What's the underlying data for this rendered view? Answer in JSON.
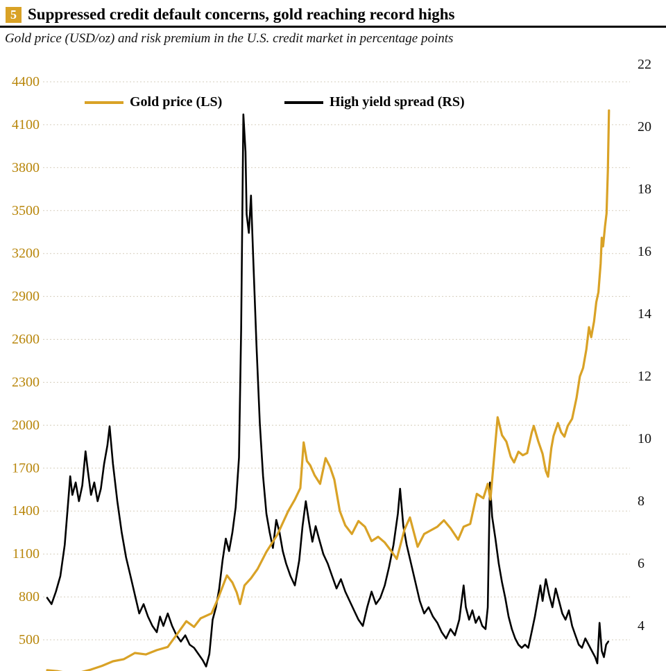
{
  "header": {
    "figure_number": "5",
    "title": "Suppressed credit default concerns, gold reaching record highs",
    "subtitle": "Gold price (USD/oz) and risk premium in the U.S. credit market in percentage points"
  },
  "colors": {
    "accent_gold": "#D9A226",
    "left_axis_text": "#B8860B",
    "right_axis_text": "#111111",
    "gridline": "#d5cdbc",
    "title_rule": "#000000"
  },
  "chart_data": {
    "type": "line",
    "title": "Suppressed credit default concerns, gold reaching record highs",
    "subtitle": "Gold price (USD/oz) and risk premium in the U.S. credit market in percentage points",
    "grid": "horizontal-dotted",
    "legend_position": "top-inside",
    "x_range": [
      2000,
      2025.7
    ],
    "x_unit": "year",
    "left_axis": {
      "ticks": [
        4400,
        4100,
        3800,
        3500,
        3200,
        2900,
        2600,
        2300,
        2000,
        1700,
        1400,
        1100,
        800,
        500
      ],
      "range": [
        280,
        4400
      ]
    },
    "right_axis": {
      "ticks": [
        22,
        20,
        18,
        16,
        14,
        12,
        10,
        8,
        6,
        4
      ],
      "range": [
        2.5,
        22
      ]
    },
    "legend": [
      {
        "label": "Gold price (LS)",
        "color": "#D9A226"
      },
      {
        "label": "High yield spread (RS)",
        "color": "#000000"
      }
    ],
    "series": [
      {
        "name": "Gold price (LS)",
        "axis": "left",
        "color": "#D9A226",
        "points": [
          [
            2000.0,
            288
          ],
          [
            2000.5,
            280
          ],
          [
            2001.0,
            266
          ],
          [
            2001.5,
            272
          ],
          [
            2002.0,
            292
          ],
          [
            2002.5,
            318
          ],
          [
            2003.0,
            350
          ],
          [
            2003.5,
            365
          ],
          [
            2004.0,
            408
          ],
          [
            2004.5,
            398
          ],
          [
            2005.0,
            428
          ],
          [
            2005.5,
            450
          ],
          [
            2006.0,
            555
          ],
          [
            2006.35,
            630
          ],
          [
            2006.7,
            590
          ],
          [
            2007.0,
            650
          ],
          [
            2007.5,
            685
          ],
          [
            2007.8,
            790
          ],
          [
            2008.2,
            950
          ],
          [
            2008.45,
            900
          ],
          [
            2008.65,
            830
          ],
          [
            2008.8,
            750
          ],
          [
            2009.0,
            880
          ],
          [
            2009.3,
            930
          ],
          [
            2009.6,
            995
          ],
          [
            2010.0,
            1115
          ],
          [
            2010.5,
            1235
          ],
          [
            2011.0,
            1400
          ],
          [
            2011.3,
            1480
          ],
          [
            2011.55,
            1560
          ],
          [
            2011.7,
            1880
          ],
          [
            2011.85,
            1750
          ],
          [
            2012.0,
            1720
          ],
          [
            2012.2,
            1650
          ],
          [
            2012.45,
            1590
          ],
          [
            2012.7,
            1770
          ],
          [
            2012.9,
            1710
          ],
          [
            2013.1,
            1620
          ],
          [
            2013.35,
            1400
          ],
          [
            2013.6,
            1300
          ],
          [
            2013.9,
            1240
          ],
          [
            2014.2,
            1330
          ],
          [
            2014.5,
            1290
          ],
          [
            2014.8,
            1190
          ],
          [
            2015.1,
            1220
          ],
          [
            2015.4,
            1180
          ],
          [
            2015.7,
            1120
          ],
          [
            2015.95,
            1065
          ],
          [
            2016.3,
            1270
          ],
          [
            2016.55,
            1355
          ],
          [
            2016.9,
            1150
          ],
          [
            2017.2,
            1240
          ],
          [
            2017.5,
            1265
          ],
          [
            2017.8,
            1290
          ],
          [
            2018.1,
            1335
          ],
          [
            2018.4,
            1280
          ],
          [
            2018.75,
            1200
          ],
          [
            2019.0,
            1290
          ],
          [
            2019.3,
            1310
          ],
          [
            2019.6,
            1520
          ],
          [
            2019.9,
            1490
          ],
          [
            2020.1,
            1590
          ],
          [
            2020.22,
            1480
          ],
          [
            2020.55,
            2055
          ],
          [
            2020.75,
            1930
          ],
          [
            2020.95,
            1885
          ],
          [
            2021.15,
            1780
          ],
          [
            2021.3,
            1740
          ],
          [
            2021.5,
            1815
          ],
          [
            2021.7,
            1790
          ],
          [
            2021.9,
            1805
          ],
          [
            2022.1,
            1945
          ],
          [
            2022.2,
            1995
          ],
          [
            2022.4,
            1890
          ],
          [
            2022.6,
            1800
          ],
          [
            2022.75,
            1680
          ],
          [
            2022.85,
            1640
          ],
          [
            2023.0,
            1840
          ],
          [
            2023.1,
            1925
          ],
          [
            2023.3,
            2015
          ],
          [
            2023.45,
            1950
          ],
          [
            2023.6,
            1920
          ],
          [
            2023.75,
            1995
          ],
          [
            2023.95,
            2045
          ],
          [
            2024.15,
            2190
          ],
          [
            2024.3,
            2340
          ],
          [
            2024.45,
            2400
          ],
          [
            2024.6,
            2530
          ],
          [
            2024.72,
            2685
          ],
          [
            2024.82,
            2615
          ],
          [
            2024.95,
            2725
          ],
          [
            2025.05,
            2860
          ],
          [
            2025.15,
            2930
          ],
          [
            2025.25,
            3130
          ],
          [
            2025.3,
            3310
          ],
          [
            2025.36,
            3250
          ],
          [
            2025.45,
            3390
          ],
          [
            2025.52,
            3480
          ],
          [
            2025.58,
            3780
          ],
          [
            2025.63,
            4200
          ]
        ]
      },
      {
        "name": "High yield spread (RS)",
        "axis": "right",
        "color": "#000000",
        "points": [
          [
            2000.0,
            4.9
          ],
          [
            2000.2,
            4.7
          ],
          [
            2000.4,
            5.1
          ],
          [
            2000.6,
            5.6
          ],
          [
            2000.8,
            6.6
          ],
          [
            2000.95,
            7.9
          ],
          [
            2001.05,
            8.8
          ],
          [
            2001.15,
            8.2
          ],
          [
            2001.3,
            8.6
          ],
          [
            2001.45,
            8.0
          ],
          [
            2001.6,
            8.5
          ],
          [
            2001.75,
            9.6
          ],
          [
            2001.85,
            9.0
          ],
          [
            2002.0,
            8.2
          ],
          [
            2002.15,
            8.6
          ],
          [
            2002.3,
            8.0
          ],
          [
            2002.45,
            8.4
          ],
          [
            2002.6,
            9.2
          ],
          [
            2002.75,
            9.8
          ],
          [
            2002.85,
            10.4
          ],
          [
            2003.0,
            9.2
          ],
          [
            2003.2,
            8.0
          ],
          [
            2003.4,
            7.0
          ],
          [
            2003.6,
            6.2
          ],
          [
            2003.8,
            5.6
          ],
          [
            2004.0,
            5.0
          ],
          [
            2004.2,
            4.4
          ],
          [
            2004.4,
            4.7
          ],
          [
            2004.6,
            4.3
          ],
          [
            2004.8,
            4.0
          ],
          [
            2005.0,
            3.8
          ],
          [
            2005.15,
            4.3
          ],
          [
            2005.3,
            4.0
          ],
          [
            2005.5,
            4.4
          ],
          [
            2005.7,
            4.0
          ],
          [
            2005.9,
            3.7
          ],
          [
            2006.1,
            3.5
          ],
          [
            2006.3,
            3.7
          ],
          [
            2006.5,
            3.4
          ],
          [
            2006.7,
            3.3
          ],
          [
            2006.9,
            3.1
          ],
          [
            2007.1,
            2.9
          ],
          [
            2007.25,
            2.7
          ],
          [
            2007.4,
            3.1
          ],
          [
            2007.55,
            4.2
          ],
          [
            2007.7,
            4.6
          ],
          [
            2007.85,
            5.2
          ],
          [
            2008.0,
            6.1
          ],
          [
            2008.15,
            6.8
          ],
          [
            2008.3,
            6.4
          ],
          [
            2008.45,
            7.0
          ],
          [
            2008.6,
            7.8
          ],
          [
            2008.75,
            9.4
          ],
          [
            2008.85,
            13.5
          ],
          [
            2008.95,
            20.4
          ],
          [
            2009.05,
            19.2
          ],
          [
            2009.1,
            17.2
          ],
          [
            2009.2,
            16.6
          ],
          [
            2009.3,
            17.8
          ],
          [
            2009.4,
            15.8
          ],
          [
            2009.55,
            13.0
          ],
          [
            2009.7,
            10.5
          ],
          [
            2009.85,
            8.8
          ],
          [
            2010.0,
            7.6
          ],
          [
            2010.15,
            7.0
          ],
          [
            2010.3,
            6.5
          ],
          [
            2010.45,
            7.4
          ],
          [
            2010.6,
            7.0
          ],
          [
            2010.75,
            6.4
          ],
          [
            2010.9,
            6.0
          ],
          [
            2011.1,
            5.6
          ],
          [
            2011.3,
            5.3
          ],
          [
            2011.5,
            6.1
          ],
          [
            2011.65,
            7.2
          ],
          [
            2011.8,
            8.0
          ],
          [
            2011.95,
            7.3
          ],
          [
            2012.1,
            6.7
          ],
          [
            2012.25,
            7.2
          ],
          [
            2012.4,
            6.8
          ],
          [
            2012.6,
            6.3
          ],
          [
            2012.8,
            6.0
          ],
          [
            2013.0,
            5.6
          ],
          [
            2013.2,
            5.2
          ],
          [
            2013.4,
            5.5
          ],
          [
            2013.6,
            5.1
          ],
          [
            2013.8,
            4.8
          ],
          [
            2014.0,
            4.5
          ],
          [
            2014.2,
            4.2
          ],
          [
            2014.4,
            4.0
          ],
          [
            2014.6,
            4.6
          ],
          [
            2014.8,
            5.1
          ],
          [
            2015.0,
            4.7
          ],
          [
            2015.2,
            4.9
          ],
          [
            2015.4,
            5.3
          ],
          [
            2015.6,
            5.9
          ],
          [
            2015.8,
            6.6
          ],
          [
            2016.0,
            7.6
          ],
          [
            2016.1,
            8.4
          ],
          [
            2016.25,
            7.2
          ],
          [
            2016.4,
            6.6
          ],
          [
            2016.6,
            6.0
          ],
          [
            2016.8,
            5.4
          ],
          [
            2017.0,
            4.8
          ],
          [
            2017.2,
            4.4
          ],
          [
            2017.4,
            4.6
          ],
          [
            2017.6,
            4.3
          ],
          [
            2017.8,
            4.1
          ],
          [
            2018.0,
            3.8
          ],
          [
            2018.2,
            3.6
          ],
          [
            2018.4,
            3.9
          ],
          [
            2018.6,
            3.7
          ],
          [
            2018.8,
            4.2
          ],
          [
            2019.0,
            5.3
          ],
          [
            2019.1,
            4.6
          ],
          [
            2019.25,
            4.2
          ],
          [
            2019.4,
            4.5
          ],
          [
            2019.55,
            4.1
          ],
          [
            2019.7,
            4.3
          ],
          [
            2019.85,
            4.0
          ],
          [
            2020.0,
            3.9
          ],
          [
            2020.1,
            4.6
          ],
          [
            2020.2,
            8.6
          ],
          [
            2020.3,
            7.5
          ],
          [
            2020.45,
            6.8
          ],
          [
            2020.6,
            6.0
          ],
          [
            2020.75,
            5.4
          ],
          [
            2020.9,
            4.9
          ],
          [
            2021.05,
            4.3
          ],
          [
            2021.2,
            3.9
          ],
          [
            2021.35,
            3.6
          ],
          [
            2021.5,
            3.4
          ],
          [
            2021.65,
            3.3
          ],
          [
            2021.8,
            3.4
          ],
          [
            2021.95,
            3.3
          ],
          [
            2022.1,
            3.8
          ],
          [
            2022.25,
            4.3
          ],
          [
            2022.4,
            4.9
          ],
          [
            2022.5,
            5.3
          ],
          [
            2022.6,
            4.8
          ],
          [
            2022.75,
            5.5
          ],
          [
            2022.9,
            5.0
          ],
          [
            2023.05,
            4.6
          ],
          [
            2023.2,
            5.2
          ],
          [
            2023.35,
            4.8
          ],
          [
            2023.5,
            4.4
          ],
          [
            2023.65,
            4.2
          ],
          [
            2023.8,
            4.5
          ],
          [
            2023.95,
            4.0
          ],
          [
            2024.1,
            3.7
          ],
          [
            2024.25,
            3.4
          ],
          [
            2024.4,
            3.3
          ],
          [
            2024.55,
            3.6
          ],
          [
            2024.7,
            3.4
          ],
          [
            2024.85,
            3.2
          ],
          [
            2025.0,
            3.0
          ],
          [
            2025.1,
            2.8
          ],
          [
            2025.2,
            4.1
          ],
          [
            2025.3,
            3.2
          ],
          [
            2025.4,
            3.0
          ],
          [
            2025.5,
            3.4
          ],
          [
            2025.6,
            3.5
          ]
        ]
      }
    ]
  }
}
